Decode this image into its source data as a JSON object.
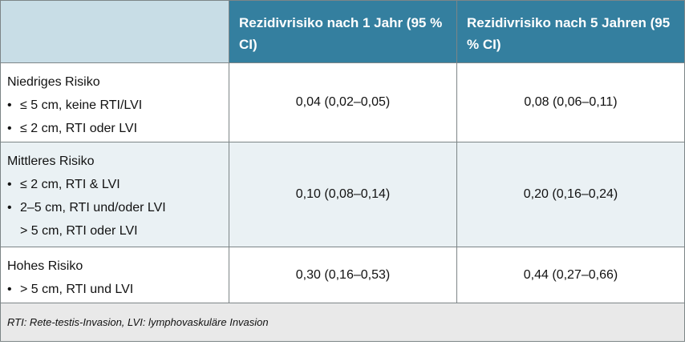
{
  "header": {
    "col1": "",
    "col2": "Rezidivrisiko nach 1 Jahr (95 % CI)",
    "col3": "Rezidivrisiko nach 5 Jahren (95 % CI)"
  },
  "rows": [
    {
      "category": "Niedriges Risiko",
      "bullets": [
        "≤ 5 cm, keine RTI/LVI",
        "≤ 2 cm, RTI oder LVI"
      ],
      "continuation": "",
      "risk_1y": "0,04 (0,02–0,05)",
      "risk_5y": "0,08 (0,06–0,11)"
    },
    {
      "category": "Mittleres Risiko",
      "bullets": [
        "≤ 2 cm, RTI & LVI",
        "2–5 cm, RTI und/oder LVI"
      ],
      "continuation": "> 5 cm, RTI oder LVI",
      "risk_1y": "0,10 (0,08–0,14)",
      "risk_5y": "0,20 (0,16–0,24)"
    },
    {
      "category": "Hohes Risiko",
      "bullets": [
        "> 5 cm, RTI und LVI"
      ],
      "continuation": "",
      "risk_1y": "0,30 (0,16–0,53)",
      "risk_5y": "0,44 (0,27–0,66)"
    }
  ],
  "footnote": "RTI: Rete-testis-Invasion, LVI: lymphovaskuläre Invasion",
  "colors": {
    "header_bg": "#347f9f",
    "header_blank_bg": "#c8dde6",
    "row_alt_bg": "#eaf1f4",
    "footer_bg": "#e9e9e9"
  }
}
